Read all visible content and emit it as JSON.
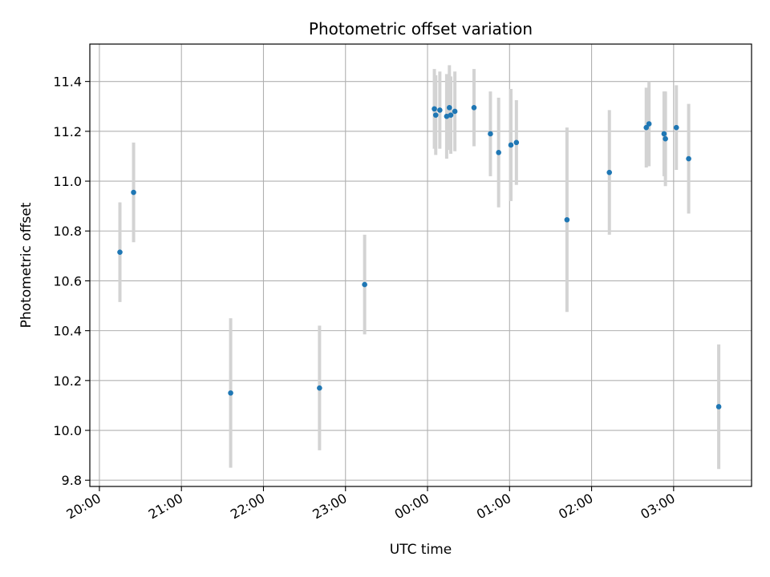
{
  "chart_data": {
    "type": "scatter",
    "title": "Photometric offset variation",
    "xlabel": "UTC time",
    "ylabel": "Photometric offset",
    "xlim": [
      "19:53",
      "03:57"
    ],
    "ylim": [
      9.775,
      11.55
    ],
    "x_ticks": [
      "20:00",
      "21:00",
      "22:00",
      "23:00",
      "00:00",
      "01:00",
      "02:00",
      "03:00"
    ],
    "y_ticks": [
      "9.8",
      "10.0",
      "10.2",
      "10.4",
      "10.6",
      "10.8",
      "11.0",
      "11.2",
      "11.4"
    ],
    "grid": true,
    "marker_color": "#1f77b4",
    "errorbar_color": "#d3d3d3",
    "points": [
      {
        "x": "20:15",
        "y": 10.715,
        "err": 0.2
      },
      {
        "x": "20:25",
        "y": 10.955,
        "err": 0.2
      },
      {
        "x": "21:36",
        "y": 10.15,
        "err": 0.3
      },
      {
        "x": "22:41",
        "y": 10.17,
        "err": 0.25
      },
      {
        "x": "23:14",
        "y": 10.585,
        "err": 0.2
      },
      {
        "x": "00:05",
        "y": 11.29,
        "err": 0.16
      },
      {
        "x": "00:06",
        "y": 11.265,
        "err": 0.16
      },
      {
        "x": "00:09",
        "y": 11.285,
        "err": 0.155
      },
      {
        "x": "00:14",
        "y": 11.26,
        "err": 0.17
      },
      {
        "x": "00:16",
        "y": 11.295,
        "err": 0.17
      },
      {
        "x": "00:17",
        "y": 11.265,
        "err": 0.155
      },
      {
        "x": "00:20",
        "y": 11.28,
        "err": 0.16
      },
      {
        "x": "00:34",
        "y": 11.295,
        "err": 0.155
      },
      {
        "x": "00:46",
        "y": 11.19,
        "err": 0.17
      },
      {
        "x": "00:52",
        "y": 11.115,
        "err": 0.22
      },
      {
        "x": "01:01",
        "y": 11.145,
        "err": 0.225
      },
      {
        "x": "01:05",
        "y": 11.155,
        "err": 0.17
      },
      {
        "x": "01:42",
        "y": 10.845,
        "err": 0.37
      },
      {
        "x": "02:13",
        "y": 11.035,
        "err": 0.25
      },
      {
        "x": "02:40",
        "y": 11.215,
        "err": 0.16
      },
      {
        "x": "02:42",
        "y": 11.23,
        "err": 0.17
      },
      {
        "x": "02:53",
        "y": 11.19,
        "err": 0.17
      },
      {
        "x": "02:54",
        "y": 11.17,
        "err": 0.19
      },
      {
        "x": "03:02",
        "y": 11.215,
        "err": 0.17
      },
      {
        "x": "03:11",
        "y": 11.09,
        "err": 0.22
      },
      {
        "x": "03:33",
        "y": 10.095,
        "err": 0.25
      }
    ]
  }
}
